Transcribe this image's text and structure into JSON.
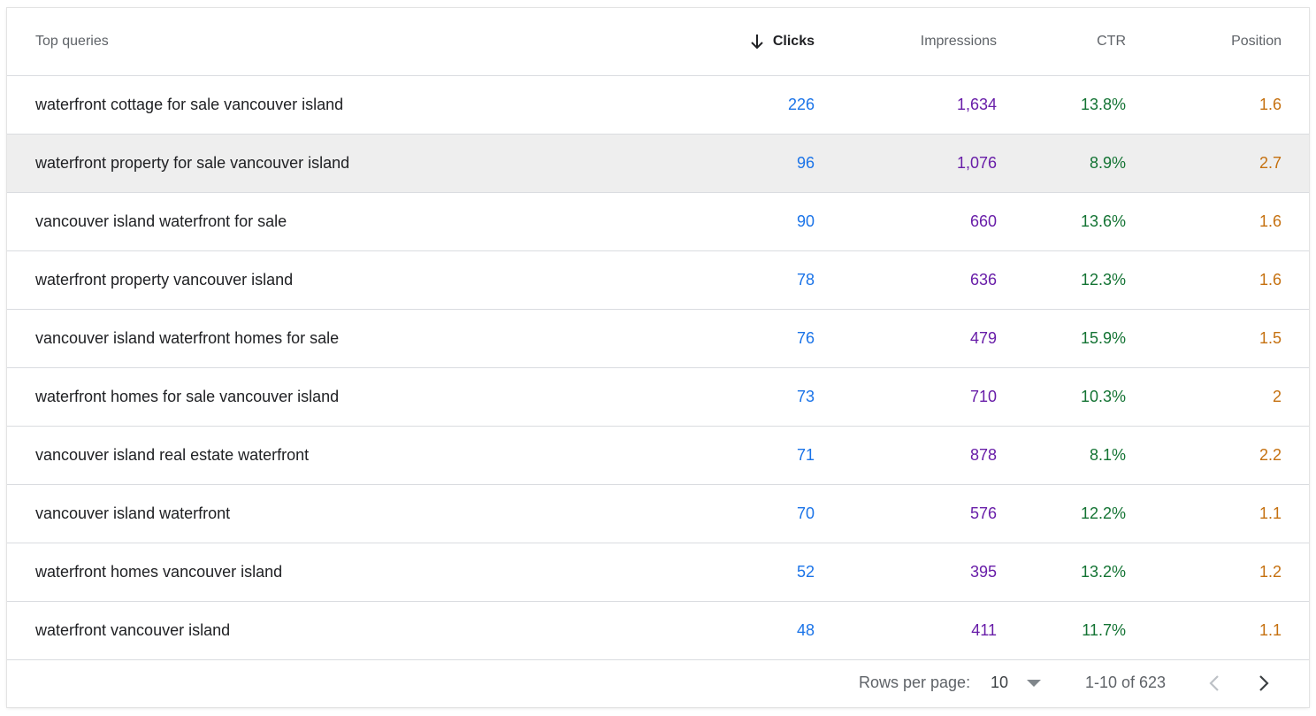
{
  "columns": {
    "query": "Top queries",
    "clicks": "Clicks",
    "impressions": "Impressions",
    "ctr": "CTR",
    "position": "Position"
  },
  "colors": {
    "clicks": "#1a73e8",
    "impressions": "#681da8",
    "ctr": "#137333",
    "position": "#c5700f"
  },
  "rows": [
    {
      "query": "waterfront cottage for sale vancouver island",
      "clicks": "226",
      "impressions": "1,634",
      "ctr": "13.8%",
      "position": "1.6"
    },
    {
      "query": "waterfront property for sale vancouver island",
      "clicks": "96",
      "impressions": "1,076",
      "ctr": "8.9%",
      "position": "2.7"
    },
    {
      "query": "vancouver island waterfront for sale",
      "clicks": "90",
      "impressions": "660",
      "ctr": "13.6%",
      "position": "1.6"
    },
    {
      "query": "waterfront property vancouver island",
      "clicks": "78",
      "impressions": "636",
      "ctr": "12.3%",
      "position": "1.6"
    },
    {
      "query": "vancouver island waterfront homes for sale",
      "clicks": "76",
      "impressions": "479",
      "ctr": "15.9%",
      "position": "1.5"
    },
    {
      "query": "waterfront homes for sale vancouver island",
      "clicks": "73",
      "impressions": "710",
      "ctr": "10.3%",
      "position": "2"
    },
    {
      "query": "vancouver island real estate waterfront",
      "clicks": "71",
      "impressions": "878",
      "ctr": "8.1%",
      "position": "2.2"
    },
    {
      "query": "vancouver island waterfront",
      "clicks": "70",
      "impressions": "576",
      "ctr": "12.2%",
      "position": "1.1"
    },
    {
      "query": "waterfront homes vancouver island",
      "clicks": "52",
      "impressions": "395",
      "ctr": "13.2%",
      "position": "1.2"
    },
    {
      "query": "waterfront vancouver island",
      "clicks": "48",
      "impressions": "411",
      "ctr": "11.7%",
      "position": "1.1"
    }
  ],
  "pagination": {
    "rows_per_page_label": "Rows per page:",
    "rows_per_page_value": "10",
    "range_text": "1-10 of 623"
  },
  "icons": {
    "sort": "arrow-down-icon",
    "dropdown": "caret-down-icon",
    "prev": "chevron-left-icon",
    "next": "chevron-right-icon"
  }
}
